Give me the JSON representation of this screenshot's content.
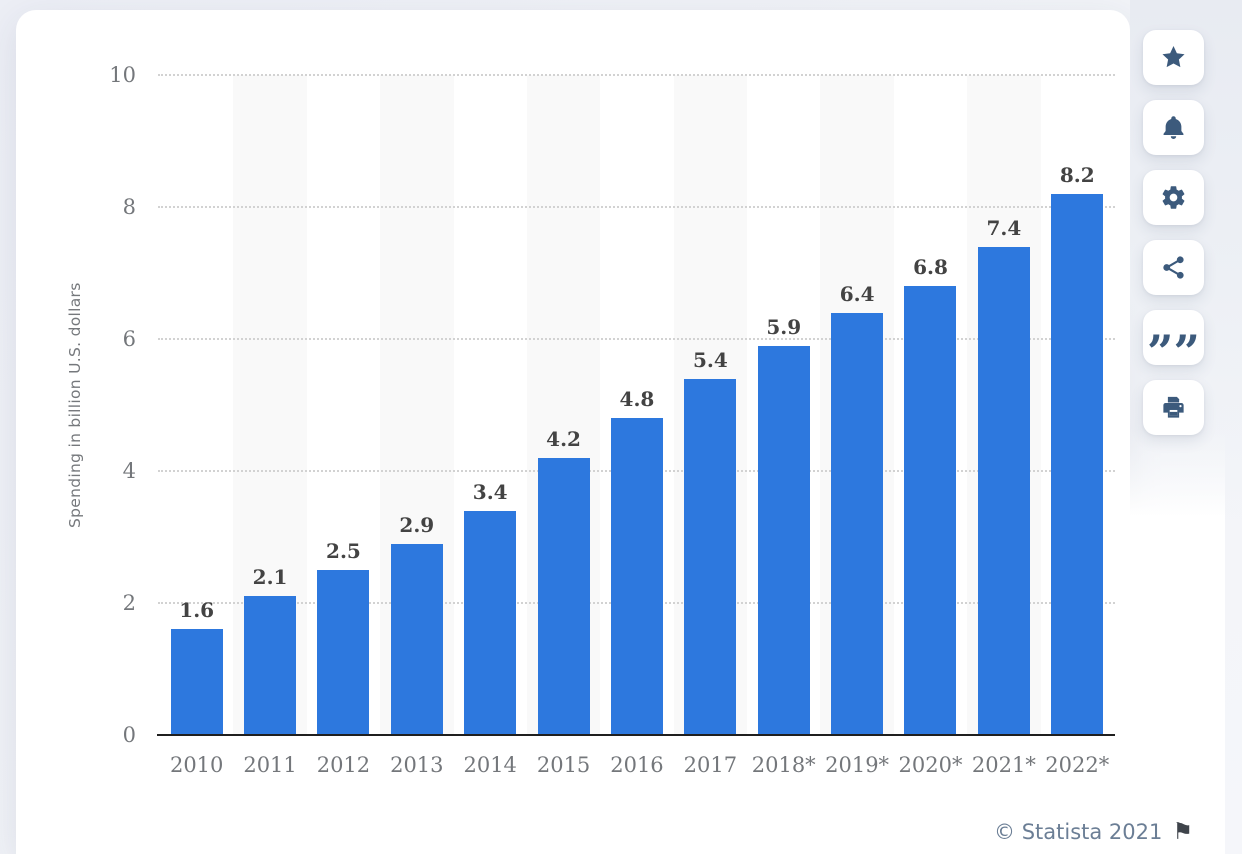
{
  "chart_data": {
    "type": "bar",
    "categories": [
      "2010",
      "2011",
      "2012",
      "2013",
      "2014",
      "2015",
      "2016",
      "2017",
      "2018*",
      "2019*",
      "2020*",
      "2021*",
      "2022*"
    ],
    "values": [
      1.6,
      2.1,
      2.5,
      2.9,
      3.4,
      4.2,
      4.8,
      5.4,
      5.9,
      6.4,
      6.8,
      7.4,
      8.2
    ],
    "title": "",
    "xlabel": "",
    "ylabel": "Spending in billion U.S. dollars",
    "yticks": [
      0,
      2,
      4,
      6,
      8,
      10
    ],
    "ylim": [
      0,
      10
    ],
    "grid": "horizontal dotted",
    "legend": "none",
    "bar_color": "#2d78de",
    "plot_band_color": "#f9f9f9",
    "striped_column_indexes": [
      1,
      3,
      5,
      7,
      9,
      11
    ]
  },
  "toolbar": {
    "icon_color": "#3c5a7c",
    "buttons": [
      {
        "name": "favorite",
        "icon": "star-icon"
      },
      {
        "name": "alert",
        "icon": "bell-icon"
      },
      {
        "name": "settings",
        "icon": "gear-icon"
      },
      {
        "name": "share",
        "icon": "share-icon"
      },
      {
        "name": "cite",
        "icon": "quote-icon",
        "glyph": "”"
      },
      {
        "name": "print",
        "icon": "printer-icon"
      }
    ]
  },
  "footer": {
    "copyright": "© Statista 2021",
    "flag_icon": "⚑"
  }
}
